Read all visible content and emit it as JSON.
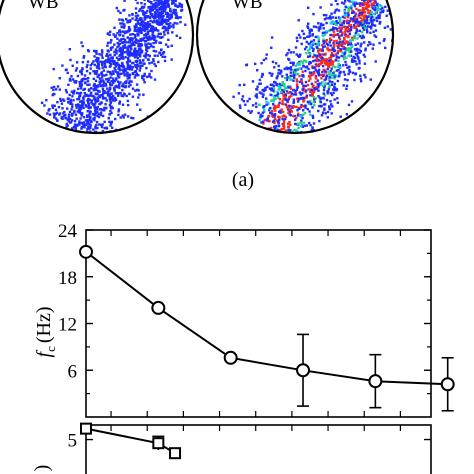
{
  "top_panel": {
    "caption": "(a)",
    "left_disk_label": "WB",
    "right_disk_label": "WB"
  },
  "colors": {
    "axis": "#000000",
    "marker_fill": "#ffffff",
    "scatter_blue": "#1f2cff",
    "scatter_cyan": "#18c8ff",
    "scatter_green": "#2fd36a",
    "scatter_red": "#ff2a1a"
  },
  "chart_data": [
    {
      "type": "line",
      "ylabel_italic": "f",
      "ylabel_sub": "c",
      "ylabel_unit": "(Hz)",
      "y_ticks": [
        "24",
        "18",
        "12",
        "6"
      ],
      "ylim": [
        0,
        24
      ],
      "xlim": [
        0,
        6.2
      ],
      "grid": false,
      "marker": "circle",
      "series": [
        {
          "x": [
            0,
            1.3,
            2.6,
            3.9,
            5.2,
            6.5
          ],
          "values": [
            21.2,
            14.0,
            7.6,
            6.0,
            4.6,
            4.2
          ],
          "err": [
            0.6,
            0.6,
            0.6,
            4.6,
            3.4,
            3.4
          ]
        }
      ]
    },
    {
      "type": "line",
      "ylabel_fragment": ")",
      "y_ticks": [
        "5"
      ],
      "ylim": [
        0,
        6.6
      ],
      "xlim": [
        0,
        6.2
      ],
      "grid": false,
      "marker": "square",
      "series": [
        {
          "x": [
            0,
            1.3,
            1.6
          ],
          "values": [
            6.2,
            4.6,
            3.5
          ],
          "err": [
            0.25,
            0.75,
            0.3
          ]
        }
      ]
    }
  ]
}
